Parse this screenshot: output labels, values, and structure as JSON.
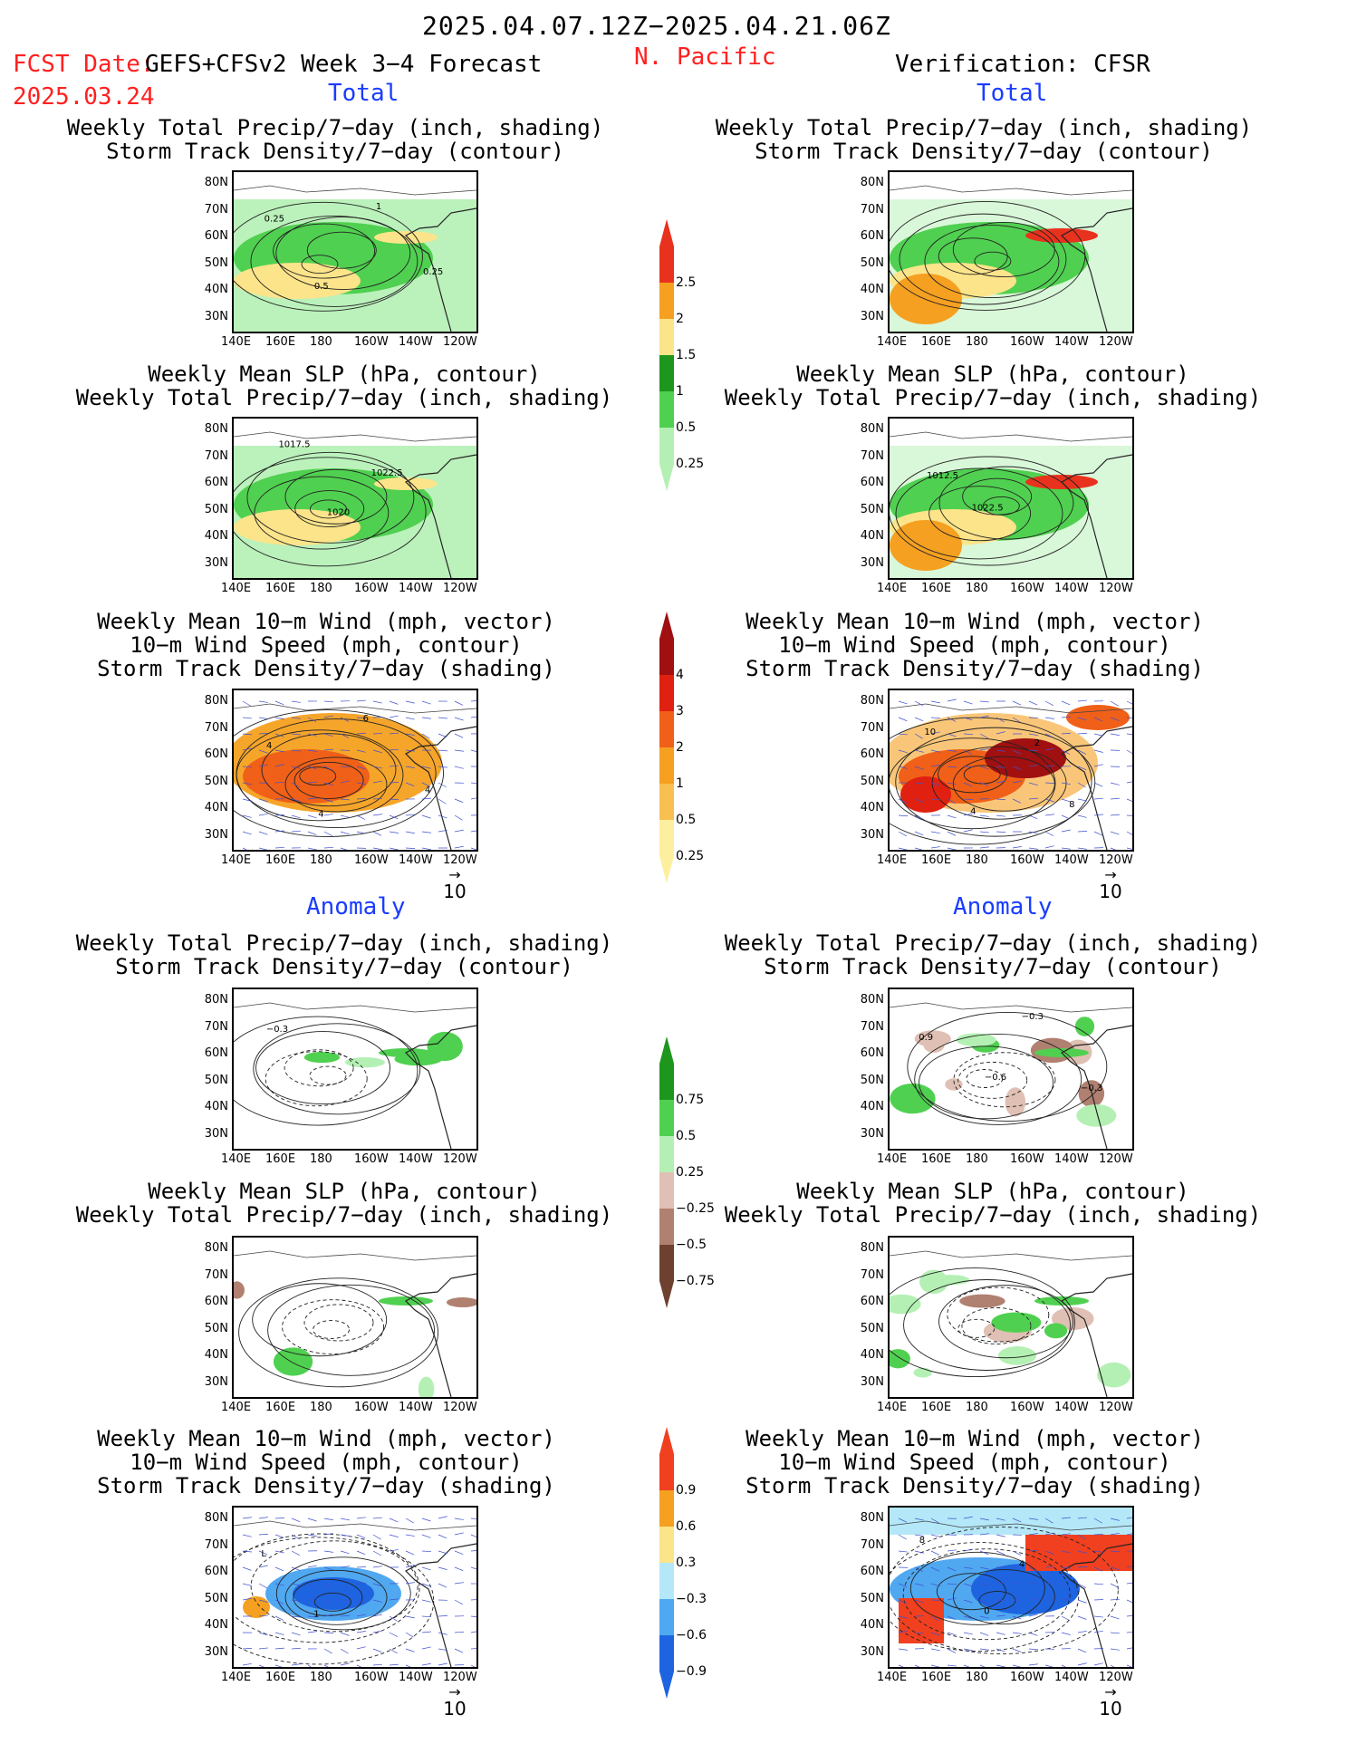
{
  "header": {
    "period": "2025.04.07.12Z−2025.04.21.06Z",
    "fcst_label": "FCST Date:",
    "fcst_model": "GEFS+CFSv2 Week 3−4 Forecast",
    "fcst_date": "2025.03.24",
    "region": "N. Pacific",
    "verification": "Verification: CFSR"
  },
  "sections": {
    "total": "Total",
    "anomaly": "Anomaly"
  },
  "titles": {
    "precip": "Weekly Total Precip/7−day (inch, shading)",
    "storm_contour": "Storm Track Density/7−day (contour)",
    "slp": "Weekly Mean SLP (hPa, contour)",
    "wind_vec": "Weekly Mean 10−m Wind (mph, vector)",
    "wind_speed": "10−m Wind Speed (mph, contour)",
    "storm_shading": "Storm Track Density/7−day (shading)"
  },
  "axes": {
    "lat": [
      "80N",
      "70N",
      "60N",
      "50N",
      "40N",
      "30N"
    ],
    "lon": [
      "140E",
      "160E",
      "180",
      "160W",
      "140W",
      "120W"
    ]
  },
  "vector_ref": "10",
  "colorbars": {
    "precip_total": {
      "labels": [
        "2.5",
        "2",
        "1.5",
        "1",
        "0.5",
        "0.25"
      ],
      "colors": [
        "#e8321e",
        "#f5a020",
        "#fce48a",
        "#1e961e",
        "#50d050",
        "#b4f0b4"
      ]
    },
    "storm_total": {
      "labels": [
        "4",
        "3",
        "2",
        "1",
        "0.5",
        "0.25"
      ],
      "colors": [
        "#a01010",
        "#e02010",
        "#f06018",
        "#f5a020",
        "#f8c050",
        "#fcf0a0"
      ]
    },
    "precip_anom": {
      "labels": [
        "0.75",
        "0.5",
        "0.25",
        "−0.25",
        "−0.5",
        "−0.75"
      ],
      "colors": [
        "#1e961e",
        "#50d050",
        "#b4f0b4",
        "#e0c0b4",
        "#b08070",
        "#6e4030"
      ]
    },
    "storm_anom": {
      "labels": [
        "0.9",
        "0.6",
        "0.3",
        "−0.3",
        "−0.6",
        "−0.9"
      ],
      "colors": [
        "#f04020",
        "#f5a020",
        "#fce48a",
        "#b4e8f8",
        "#50a8f0",
        "#1e64e0"
      ]
    },
    "contour_labels": {
      "p1": [
        "0.25",
        "0.5",
        "1",
        "0.25"
      ],
      "p2": [
        "1017.5",
        "1020",
        "1022.5"
      ],
      "p4": [
        "1012.5",
        "1022.5"
      ],
      "p5": [
        "4",
        "4",
        "6",
        "4"
      ],
      "p6": [
        "10",
        "4",
        "2",
        "8"
      ],
      "p7": [
        "−0.3"
      ],
      "p8": [
        "0.9",
        "−0.6",
        "−0.3",
        "−0.3"
      ],
      "p11": [
        "L",
        "1"
      ],
      "p12": [
        "8",
        "0",
        "4"
      ]
    }
  }
}
